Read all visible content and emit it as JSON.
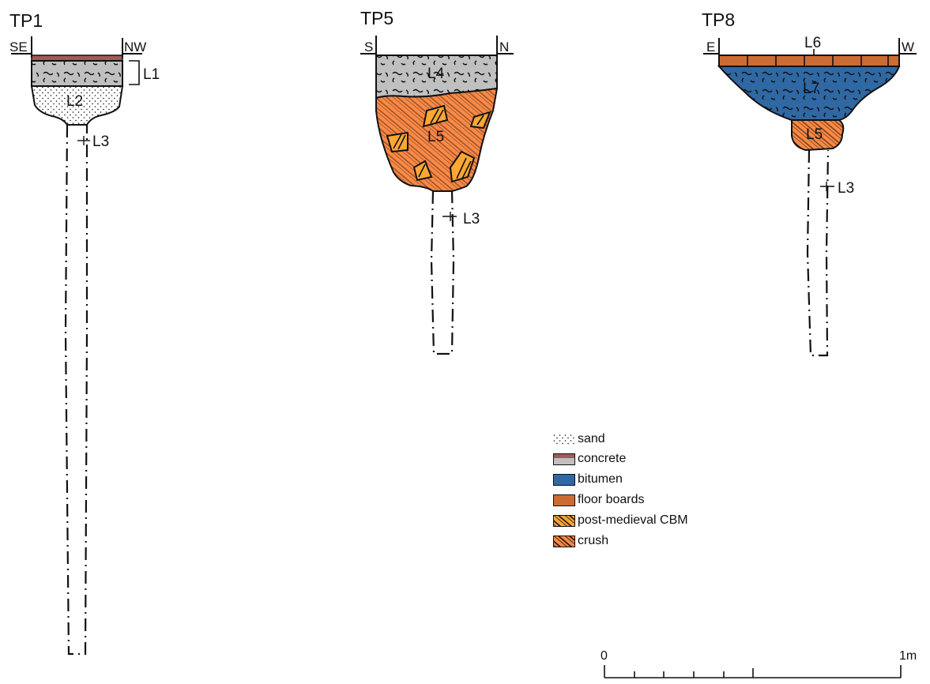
{
  "sections": {
    "tp1": {
      "title": "TP1",
      "left_dir": "SE",
      "right_dir": "NW",
      "layers": [
        "L1",
        "L2",
        "L3"
      ]
    },
    "tp5": {
      "title": "TP5",
      "left_dir": "S",
      "right_dir": "N",
      "layers": [
        "L4",
        "L5",
        "L3"
      ]
    },
    "tp8": {
      "title": "TP8",
      "left_dir": "E",
      "right_dir": "W",
      "layers": [
        "L6",
        "L7",
        "L5",
        "L3"
      ]
    }
  },
  "legend": [
    {
      "label": "sand",
      "pattern": "stipple",
      "color": "#ffffff"
    },
    {
      "label": "concrete",
      "pattern": "banded",
      "color": "#c0c0c0",
      "band_color": "#a15a5a"
    },
    {
      "label": "bitumen",
      "pattern": "solid",
      "color": "#2f68a3"
    },
    {
      "label": "floor boards",
      "pattern": "solid",
      "color": "#cd6b35"
    },
    {
      "label": "post-medieval CBM",
      "pattern": "hatched",
      "color": "#ffa733"
    },
    {
      "label": "crush",
      "pattern": "hatched",
      "color": "#ff8a45"
    }
  ],
  "scale": {
    "start": "0",
    "end": "1m"
  },
  "colors": {
    "concrete": "#c0c0c0",
    "concrete_cap": "#a15a5a",
    "bitumen": "#2f68a3",
    "floor_boards": "#cd6b35",
    "cbm": "#ffa733",
    "crush": "#ff8a45",
    "ink": "#111111"
  }
}
